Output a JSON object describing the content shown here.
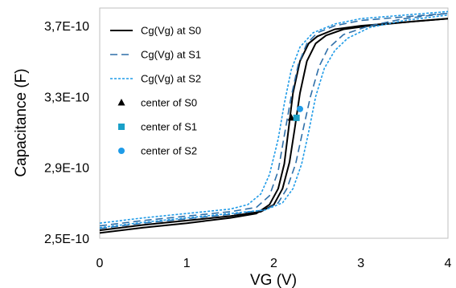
{
  "chart_data": {
    "type": "line",
    "xlabel": "VG (V)",
    "ylabel": "Capacitance (F)",
    "xlim": [
      0,
      4
    ],
    "ylim": [
      2.5e-10,
      3.8e-10
    ],
    "x_ticks": [
      0,
      1,
      2,
      3,
      4
    ],
    "y_ticks": [
      2.5e-10,
      2.9e-10,
      3.3e-10,
      3.7e-10
    ],
    "x_tick_labels": [
      "0",
      "1",
      "2",
      "3",
      "4"
    ],
    "y_tick_labels": [
      "2,5E-10",
      "2,9E-10",
      "3,3E-10",
      "3,7E-10"
    ],
    "grid": false,
    "legend_position": "top-left",
    "colors": {
      "s0": "#000000",
      "s1": "#2F6FA8",
      "s2": "#1E9BE8",
      "center_s1": "#1AA0C8"
    },
    "series": [
      {
        "name": "Cg(Vg) at S0",
        "style": "solid",
        "color_key": "s0",
        "x": [
          0,
          0.5,
          1.0,
          1.5,
          1.8,
          1.95,
          2.05,
          2.12,
          2.17,
          2.22,
          2.3,
          2.4,
          2.5,
          2.7,
          3.0,
          3.5,
          4.0
        ],
        "y": [
          2.53e-10,
          2.56e-10,
          2.585e-10,
          2.615e-10,
          2.64e-10,
          2.69e-10,
          2.78e-10,
          2.92e-10,
          3.12e-10,
          3.32e-10,
          3.5e-10,
          3.6e-10,
          3.64e-10,
          3.68e-10,
          3.7e-10,
          3.72e-10,
          3.74e-10
        ]
      },
      {
        "name": "Cg(Vg) at S0",
        "style": "solid",
        "color_key": "s0",
        "x": [
          0,
          0.5,
          1.0,
          1.5,
          1.85,
          2.0,
          2.1,
          2.18,
          2.24,
          2.3,
          2.38,
          2.48,
          2.6,
          2.8,
          3.1,
          3.5,
          4.0
        ],
        "y": [
          2.545e-10,
          2.575e-10,
          2.6e-10,
          2.625e-10,
          2.65e-10,
          2.69e-10,
          2.78e-10,
          2.93e-10,
          3.12e-10,
          3.32e-10,
          3.5e-10,
          3.6e-10,
          3.645e-10,
          3.68e-10,
          3.7e-10,
          3.72e-10,
          3.74e-10
        ]
      },
      {
        "name": "Cg(Vg) at S1",
        "style": "dash",
        "color_key": "s1",
        "x": [
          0,
          0.5,
          1.0,
          1.5,
          1.8,
          1.95,
          2.05,
          2.12,
          2.2,
          2.28,
          2.38,
          2.5,
          2.7,
          3.0,
          3.5,
          4.0
        ],
        "y": [
          2.57e-10,
          2.6e-10,
          2.625e-10,
          2.65e-10,
          2.675e-10,
          2.74e-10,
          2.88e-10,
          3.08e-10,
          3.3e-10,
          3.48e-10,
          3.6e-10,
          3.66e-10,
          3.7e-10,
          3.73e-10,
          3.75e-10,
          3.77e-10
        ]
      },
      {
        "name": "Cg(Vg) at S1",
        "style": "dash",
        "color_key": "s1",
        "x": [
          0,
          0.5,
          1.0,
          1.5,
          1.9,
          2.05,
          2.15,
          2.25,
          2.33,
          2.42,
          2.52,
          2.62,
          2.8,
          3.1,
          3.5,
          4.0
        ],
        "y": [
          2.555e-10,
          2.585e-10,
          2.61e-10,
          2.635e-10,
          2.66e-10,
          2.7e-10,
          2.78e-10,
          2.92e-10,
          3.1e-10,
          3.3e-10,
          3.47e-10,
          3.57e-10,
          3.65e-10,
          3.7e-10,
          3.74e-10,
          3.77e-10
        ]
      },
      {
        "name": "Cg(Vg) at S2",
        "style": "dot",
        "color_key": "s2",
        "x": [
          0,
          0.5,
          1.0,
          1.5,
          1.7,
          1.85,
          1.95,
          2.05,
          2.12,
          2.2,
          2.3,
          2.45,
          2.7,
          3.0,
          3.5,
          4.0
        ],
        "y": [
          2.585e-10,
          2.615e-10,
          2.64e-10,
          2.665e-10,
          2.69e-10,
          2.75e-10,
          2.86e-10,
          3.06e-10,
          3.26e-10,
          3.45e-10,
          3.58e-10,
          3.66e-10,
          3.71e-10,
          3.74e-10,
          3.76e-10,
          3.78e-10
        ]
      },
      {
        "name": "Cg(Vg) at S2",
        "style": "dot",
        "color_key": "s2",
        "x": [
          0,
          0.5,
          1.0,
          1.5,
          1.9,
          2.1,
          2.22,
          2.32,
          2.4,
          2.48,
          2.58,
          2.7,
          2.85,
          3.1,
          3.5,
          4.0
        ],
        "y": [
          2.56e-10,
          2.59e-10,
          2.615e-10,
          2.64e-10,
          2.66e-10,
          2.7e-10,
          2.78e-10,
          2.92e-10,
          3.1e-10,
          3.3e-10,
          3.46e-10,
          3.56e-10,
          3.63e-10,
          3.69e-10,
          3.73e-10,
          3.76e-10
        ]
      }
    ],
    "markers": [
      {
        "name": "center of S0",
        "shape": "triangle",
        "color_key": "s0",
        "x": 2.2,
        "y": 3.18e-10
      },
      {
        "name": "center of S1",
        "shape": "square",
        "color_key": "center_s1",
        "x": 2.26,
        "y": 3.18e-10
      },
      {
        "name": "center of S2",
        "shape": "circle",
        "color_key": "s2",
        "x": 2.3,
        "y": 3.23e-10
      }
    ],
    "legend": [
      {
        "label": "Cg(Vg) at S0",
        "kind": "line",
        "style": "solid",
        "color_key": "s0"
      },
      {
        "label": "Cg(Vg) at S1",
        "kind": "line",
        "style": "dash",
        "color_key": "s1"
      },
      {
        "label": "Cg(Vg) at S2",
        "kind": "line",
        "style": "dot",
        "color_key": "s2"
      },
      {
        "label": "center of S0",
        "kind": "marker",
        "shape": "triangle",
        "color_key": "s0"
      },
      {
        "label": "center of S1",
        "kind": "marker",
        "shape": "square",
        "color_key": "center_s1"
      },
      {
        "label": "center of S2",
        "kind": "marker",
        "shape": "circle",
        "color_key": "s2"
      }
    ]
  }
}
